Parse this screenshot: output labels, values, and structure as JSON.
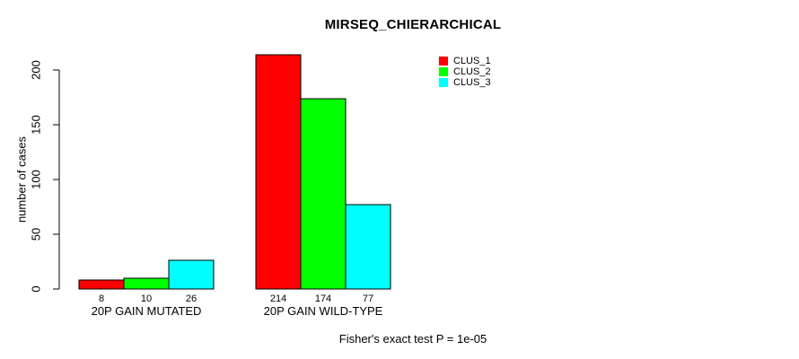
{
  "chart_data": {
    "type": "bar",
    "title": "MIRSEQ_CHIERARCHICAL",
    "ylabel": "number of cases",
    "xlabel": "",
    "categories": [
      "20P GAIN MUTATED",
      "20P GAIN WILD-TYPE"
    ],
    "series": [
      {
        "name": "CLUS_1",
        "color": "#ff0000",
        "values": [
          8,
          214
        ]
      },
      {
        "name": "CLUS_2",
        "color": "#00ff00",
        "values": [
          10,
          174
        ]
      },
      {
        "name": "CLUS_3",
        "color": "#00ffff",
        "values": [
          26,
          77
        ]
      }
    ],
    "bar_border_color": "#000000",
    "yticks": [
      0,
      50,
      100,
      150,
      200
    ],
    "ylim": [
      0,
      220
    ],
    "grid": false,
    "legend_position": "top-right",
    "show_bar_values": true,
    "annotation": "Fisher's exact test P = 1e-05"
  }
}
